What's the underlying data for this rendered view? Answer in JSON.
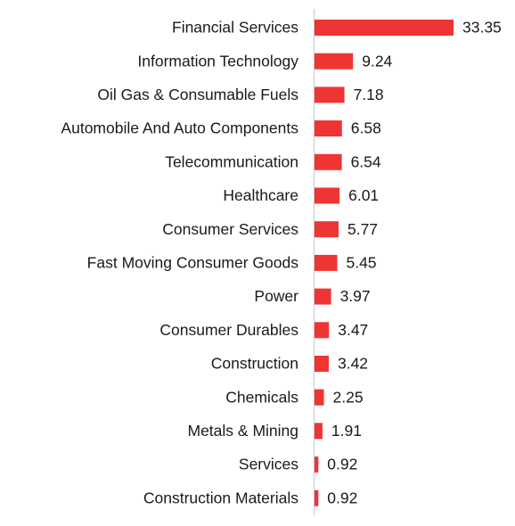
{
  "chart_data": {
    "type": "bar",
    "orientation": "horizontal",
    "color": "#ef3434",
    "categories": [
      "Financial Services",
      "Information Technology",
      "Oil Gas & Consumable Fuels",
      "Automobile And Auto Components",
      "Telecommunication",
      "Healthcare",
      "Consumer Services",
      "Fast Moving Consumer Goods",
      "Power",
      "Consumer Durables",
      "Construction",
      "Chemicals",
      "Metals & Mining",
      "Services",
      "Construction Materials"
    ],
    "values": [
      33.35,
      9.24,
      7.18,
      6.58,
      6.54,
      6.01,
      5.77,
      5.45,
      3.97,
      3.47,
      3.42,
      2.25,
      1.91,
      0.92,
      0.92
    ]
  }
}
